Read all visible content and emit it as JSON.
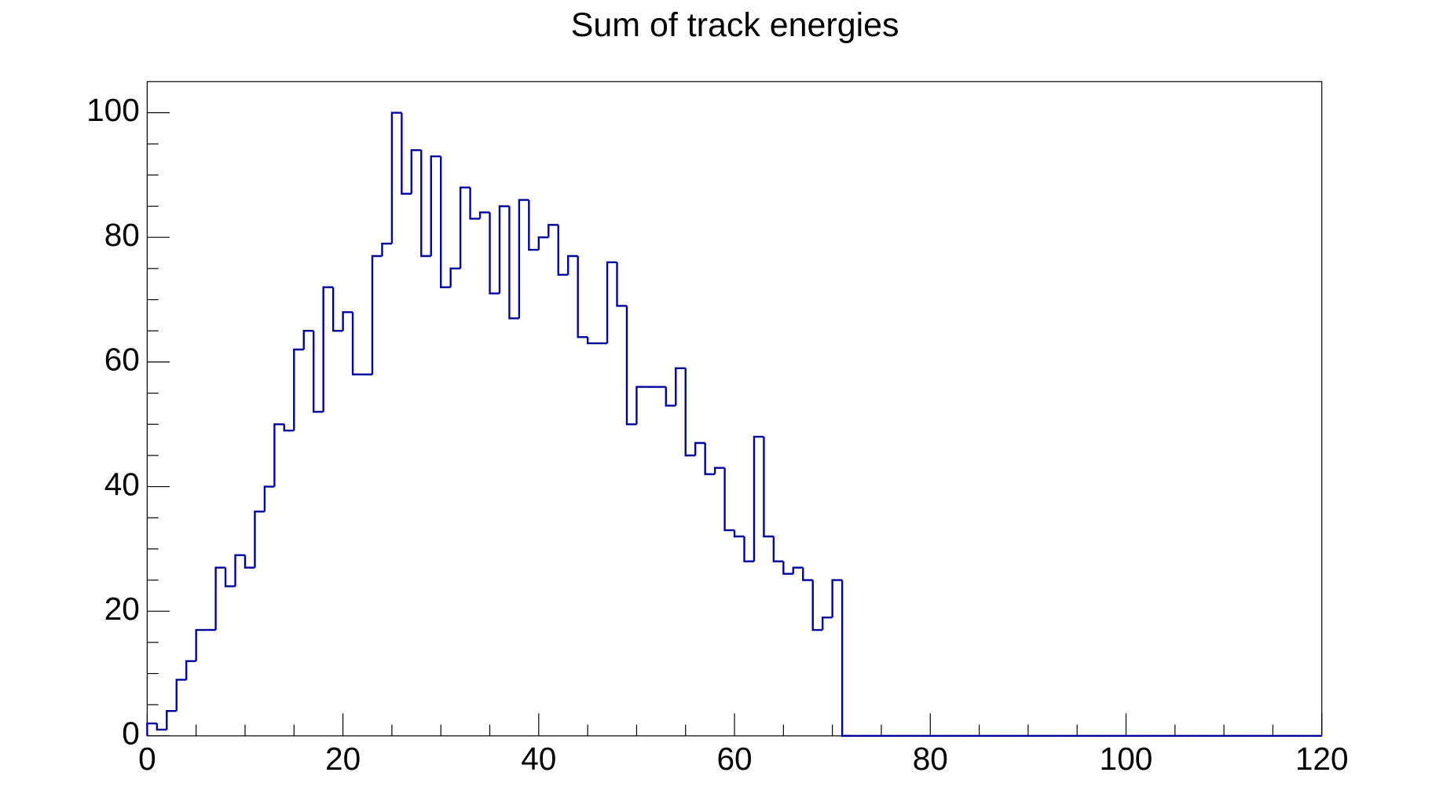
{
  "chart_data": {
    "type": "histogram",
    "title": "Sum of track energies",
    "bins": [
      0,
      1,
      2,
      3,
      4,
      5,
      6,
      7,
      8,
      9,
      10,
      11,
      12,
      13,
      14,
      15,
      16,
      17,
      18,
      19,
      20,
      21,
      22,
      23,
      24,
      25,
      26,
      27,
      28,
      29,
      30,
      31,
      32,
      33,
      34,
      35,
      36,
      37,
      38,
      39,
      40,
      41,
      42,
      43,
      44,
      45,
      46,
      47,
      48,
      49,
      50,
      51,
      52,
      53,
      54,
      55,
      56,
      57,
      58,
      59,
      60,
      61,
      62,
      63,
      64,
      65,
      66,
      67,
      68,
      69,
      70,
      71,
      72,
      73,
      74,
      75,
      76,
      77,
      78,
      79,
      80,
      81,
      82,
      83,
      84,
      85,
      86,
      87,
      88,
      89,
      90,
      91,
      92,
      93,
      94,
      95,
      96,
      97,
      98,
      99,
      100,
      101,
      102,
      103,
      104,
      105,
      106,
      107,
      108,
      109,
      110,
      111,
      112,
      113,
      114,
      115,
      116,
      117,
      118,
      119,
      120
    ],
    "values": [
      2,
      1,
      4,
      9,
      12,
      17,
      17,
      27,
      24,
      29,
      27,
      36,
      40,
      50,
      49,
      62,
      65,
      52,
      72,
      65,
      68,
      58,
      58,
      77,
      79,
      100,
      87,
      94,
      77,
      93,
      72,
      75,
      88,
      83,
      84,
      71,
      85,
      67,
      86,
      78,
      80,
      82,
      74,
      77,
      64,
      63,
      63,
      76,
      69,
      50,
      56,
      56,
      56,
      53,
      59,
      45,
      47,
      42,
      43,
      33,
      32,
      28,
      48,
      32,
      28,
      26,
      27,
      25,
      17,
      19,
      25,
      0,
      0,
      0,
      0,
      0,
      0,
      0,
      0,
      0,
      0,
      0,
      0,
      0,
      0,
      0,
      0,
      0,
      0,
      0,
      0,
      0,
      0,
      0,
      0,
      0,
      0,
      0,
      0,
      0,
      0,
      0,
      0,
      0,
      0,
      0,
      0,
      0,
      0,
      0,
      0,
      0,
      0,
      0,
      0,
      0,
      0,
      0,
      0,
      0
    ],
    "color": "#00009c",
    "xlim": [
      0,
      120
    ],
    "xticks": [
      0,
      20,
      40,
      60,
      80,
      100,
      120
    ],
    "ylim": [
      0,
      105
    ],
    "yticks": [
      0,
      20,
      40,
      60,
      80,
      100
    ]
  }
}
